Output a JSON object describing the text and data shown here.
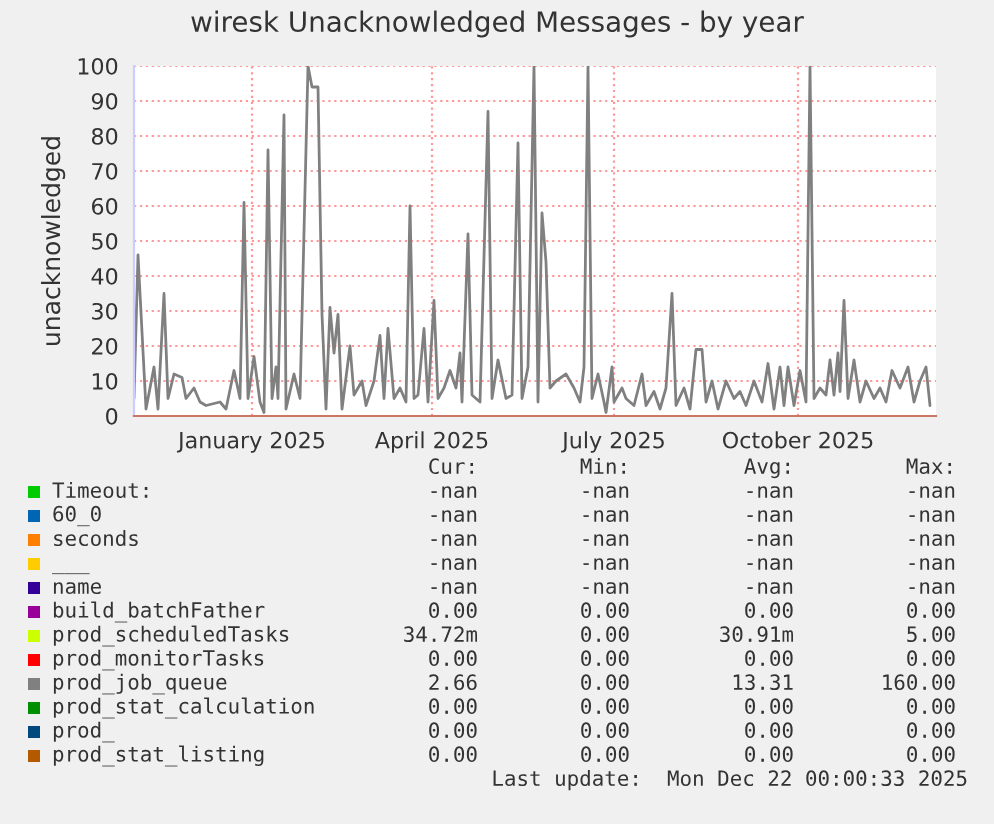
{
  "chart_data": {
    "type": "line",
    "title": "wiresk Unacknowledged Messages - by year",
    "ylabel": "unacknowledged",
    "xlim": [
      "2024-11-03",
      "2025-12-09"
    ],
    "ylim": [
      0,
      100
    ],
    "yticks": [
      0,
      10,
      20,
      30,
      40,
      50,
      60,
      70,
      80,
      90,
      100
    ],
    "xticks": [
      {
        "value": "2025-01-01",
        "label": "January 2025"
      },
      {
        "value": "2025-04-01",
        "label": "April 2025"
      },
      {
        "value": "2025-07-01",
        "label": "July 2025"
      },
      {
        "value": "2025-10-01",
        "label": "October 2025"
      }
    ],
    "grid": true,
    "legend": "bottom",
    "series": [
      {
        "name": "Timeout:",
        "color": "#00cc00",
        "values": [
          null
        ]
      },
      {
        "name": "60_0",
        "color": "#0066b3",
        "values": [
          null
        ]
      },
      {
        "name": "seconds",
        "color": "#ff8000",
        "values": [
          null
        ]
      },
      {
        "name": "___",
        "color": "#ffcc00",
        "values": [
          null
        ]
      },
      {
        "name": "name",
        "color": "#330099",
        "values": [
          null
        ]
      },
      {
        "name": "build_batchFather",
        "color": "#990099",
        "values": [
          null
        ]
      },
      {
        "name": "prod_scheduledTasks",
        "color": "#ccff00",
        "values": [
          null
        ]
      },
      {
        "name": "prod_monitorTasks",
        "color": "#ff0000",
        "values": [
          null
        ]
      },
      {
        "name": "prod_job_queue",
        "color": "#808080",
        "x": [
          "2024-11-03",
          "2024-11-05",
          "2024-11-09",
          "2024-11-13",
          "2024-11-15",
          "2024-11-18",
          "2024-11-20",
          "2024-11-23",
          "2024-11-27",
          "2024-11-29",
          "2024-12-03",
          "2024-12-06",
          "2024-12-09",
          "2024-12-16",
          "2024-12-19",
          "2024-12-23",
          "2024-12-26",
          "2024-12-28",
          "2024-12-30",
          "2025-01-02",
          "2025-01-05",
          "2025-01-07",
          "2025-01-09",
          "2025-01-11",
          "2025-01-13",
          "2025-01-14",
          "2025-01-17",
          "2025-01-18",
          "2025-01-22",
          "2025-01-25",
          "2025-01-29",
          "2025-01-31",
          "2025-02-03",
          "2025-02-05",
          "2025-02-07",
          "2025-02-09",
          "2025-02-11",
          "2025-02-13",
          "2025-02-15",
          "2025-02-19",
          "2025-02-21",
          "2025-02-25",
          "2025-02-27",
          "2025-03-03",
          "2025-03-06",
          "2025-03-08",
          "2025-03-10",
          "2025-03-13",
          "2025-03-16",
          "2025-03-19",
          "2025-03-21",
          "2025-03-23",
          "2025-03-25",
          "2025-03-28",
          "2025-03-30",
          "2025-04-02",
          "2025-04-04",
          "2025-04-07",
          "2025-04-10",
          "2025-04-13",
          "2025-04-15",
          "2025-04-16",
          "2025-04-19",
          "2025-04-21",
          "2025-04-25",
          "2025-04-29",
          "2025-05-01",
          "2025-05-04",
          "2025-05-08",
          "2025-05-11",
          "2025-05-14",
          "2025-05-16",
          "2025-05-19",
          "2025-05-22",
          "2025-05-24",
          "2025-05-26",
          "2025-05-28",
          "2025-05-30",
          "2025-06-02",
          "2025-06-07",
          "2025-06-11",
          "2025-06-14",
          "2025-06-16",
          "2025-06-18",
          "2025-06-20",
          "2025-06-23",
          "2025-06-26",
          "2025-06-27",
          "2025-06-30",
          "2025-07-01",
          "2025-07-05",
          "2025-07-07",
          "2025-07-11",
          "2025-07-15",
          "2025-07-17",
          "2025-07-21",
          "2025-07-24",
          "2025-07-27",
          "2025-07-30",
          "2025-08-01",
          "2025-08-05",
          "2025-08-08",
          "2025-08-11",
          "2025-08-14",
          "2025-08-16",
          "2025-08-19",
          "2025-08-22",
          "2025-08-26",
          "2025-08-30",
          "2025-09-02",
          "2025-09-05",
          "2025-09-09",
          "2025-09-13",
          "2025-09-16",
          "2025-09-19",
          "2025-09-22",
          "2025-09-24",
          "2025-09-26",
          "2025-09-29",
          "2025-10-02",
          "2025-10-05",
          "2025-10-07",
          "2025-10-09",
          "2025-10-12",
          "2025-10-15",
          "2025-10-17",
          "2025-10-19",
          "2025-10-21",
          "2025-10-22",
          "2025-10-24",
          "2025-10-26",
          "2025-10-29",
          "2025-11-01",
          "2025-11-04",
          "2025-11-08",
          "2025-11-11",
          "2025-11-14",
          "2025-11-17",
          "2025-11-21",
          "2025-11-25",
          "2025-11-28",
          "2025-12-01",
          "2025-12-04",
          "2025-12-06"
        ],
        "values": [
          5,
          46,
          2,
          14,
          2,
          35,
          5,
          12,
          11,
          5,
          8,
          4,
          3,
          4,
          2,
          13,
          5,
          61,
          5,
          17,
          4,
          1,
          76,
          5,
          14,
          5,
          86,
          2,
          12,
          5,
          100,
          94,
          94,
          29,
          2,
          31,
          18,
          29,
          2,
          20,
          6,
          10,
          3,
          10,
          23,
          5,
          25,
          5,
          8,
          4,
          60,
          5,
          6,
          25,
          4,
          33,
          5,
          8,
          13,
          8,
          18,
          4,
          52,
          6,
          4,
          87,
          5,
          16,
          5,
          6,
          78,
          5,
          14,
          100,
          4,
          58,
          44,
          8,
          10,
          12,
          8,
          4,
          14,
          100,
          5,
          12,
          4,
          1,
          14,
          4,
          8,
          5,
          3,
          12,
          3,
          7,
          2,
          8,
          35,
          3,
          8,
          2,
          19,
          19,
          4,
          10,
          2,
          10,
          5,
          7,
          3,
          10,
          4,
          15,
          2,
          14,
          3,
          14,
          3,
          13,
          4,
          100,
          5,
          8,
          6,
          16,
          6,
          18,
          7,
          33,
          5,
          16,
          4,
          10,
          5,
          8,
          4,
          13,
          8,
          14,
          4,
          10,
          14,
          3
        ]
      },
      {
        "name": "prod_stat_calculation",
        "color": "#008f00",
        "values": [
          null
        ]
      },
      {
        "name": "prod_",
        "color": "#00487d",
        "values": [
          null
        ]
      },
      {
        "name": "prod_stat_listing",
        "color": "#b35a00",
        "values": [
          null
        ]
      }
    ],
    "annotations": [
      "Cur:",
      "Min:",
      "Avg:",
      "Max:",
      "-nan",
      "-nan",
      "-nan",
      "-nan",
      "-nan",
      "-nan",
      "-nan",
      "-nan",
      "-nan",
      "-nan",
      "-nan",
      "-nan",
      "-nan",
      "-nan",
      "-nan",
      "-nan",
      "-nan",
      "-nan",
      "-nan",
      "-nan",
      "0.00",
      "0.00",
      "0.00",
      "0.00",
      "34.72m",
      "0.00",
      "30.91m",
      "5.00",
      "0.00",
      "0.00",
      "0.00",
      "0.00",
      "2.66",
      "0.00",
      "13.31",
      "160.00",
      "0.00",
      "0.00",
      "0.00",
      "0.00",
      "0.00",
      "0.00",
      "0.00",
      "0.00",
      "0.00",
      "0.00",
      "0.00",
      "0.00",
      "Last update:  Mon Dec 22 00:00:33 2025"
    ]
  }
}
